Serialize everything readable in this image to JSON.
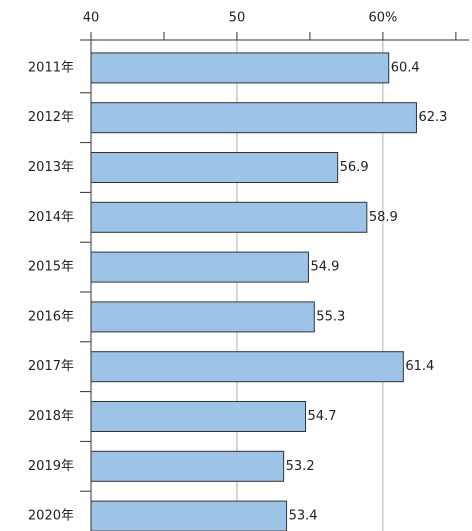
{
  "chart_data": {
    "type": "bar",
    "orientation": "horizontal",
    "categories": [
      "2011年",
      "2012年",
      "2013年",
      "2014年",
      "2015年",
      "2016年",
      "2017年",
      "2018年",
      "2019年",
      "2020年"
    ],
    "values": [
      60.4,
      62.3,
      56.9,
      58.9,
      54.9,
      55.3,
      61.4,
      54.7,
      53.2,
      53.4
    ],
    "color": "#9dc3e6",
    "xlim": [
      40,
      65.9
    ],
    "xticks": [
      40,
      50,
      {
        "value": 60,
        "label": "60%"
      }
    ],
    "xminor_ticks": [
      45,
      55,
      65
    ],
    "grid": true
  }
}
